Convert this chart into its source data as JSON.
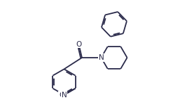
{
  "background_color": "#ffffff",
  "line_color": "#2a2a4a",
  "line_width": 1.3,
  "dbo": 0.06,
  "figsize": [
    2.57,
    1.54
  ],
  "dpi": 100,
  "font_size": 7.5,
  "xlim": [
    -0.5,
    8.5
  ],
  "ylim": [
    -0.5,
    5.5
  ]
}
